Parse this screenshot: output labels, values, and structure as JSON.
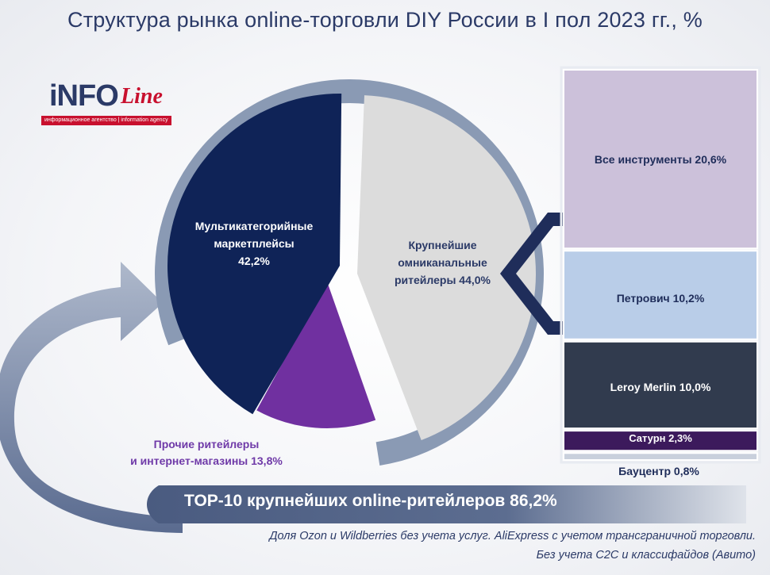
{
  "title": "Структура рынка online-торговли DIY России в I пол 2023 гг., %",
  "logo": {
    "brand_part1": "iNFO",
    "brand_part2": "Line",
    "tagline": "информационное агентство | information agency"
  },
  "colors": {
    "marketplaces": "#0f2357",
    "omnichannel": "#dcdcdc",
    "other": "#7030a0",
    "ring": "#8a9ab4",
    "vse_instrumenty": "#ccc1da",
    "petrovich": "#b9cde8",
    "leroy": "#313b4e",
    "saturn": "#3c1a5c",
    "baucenter": "#c9d0dc",
    "dark_blue": "#1f2d5a"
  },
  "chart_data": [
    {
      "type": "pie",
      "categories": [
        "Мультикатегорийные маркетплейсы",
        "Крупнейшие омниканальные ритейлеры",
        "Прочие ритейлеры и интернет-магазины"
      ],
      "values": [
        42.2,
        44.0,
        13.8
      ],
      "labels": [
        [
          "Мультикатегорийные",
          "маркетплейсы",
          "42,2%"
        ],
        [
          "Крупнейшие",
          "омниканальные",
          "ритейлеры 44,0%"
        ],
        [
          "Прочие ритейлеры",
          "и интернет-магазины 13,8%"
        ]
      ]
    },
    {
      "type": "bar",
      "stacked": true,
      "categories": [
        "Все инструменты",
        "Петрович",
        "Leroy Merlin",
        "Сатурн",
        "Бауцентр"
      ],
      "values": [
        20.6,
        10.2,
        10.0,
        2.3,
        0.8
      ],
      "labels": [
        "Все инструменты 20,6%",
        "Петрович 10,2%",
        "Leroy Merlin 10,0%",
        "Сатурн 2,3%",
        "Бауцентр 0,8%"
      ]
    }
  ],
  "top10_label": "TOP-10 крупнейших online-ритейлеров 86,2%",
  "footnote": [
    "Доля Ozon и Wildberries без учета услуг. AliExpress с учетом трансграничной торговли.",
    "Без учета С2С и классифайдов (Авито)"
  ]
}
